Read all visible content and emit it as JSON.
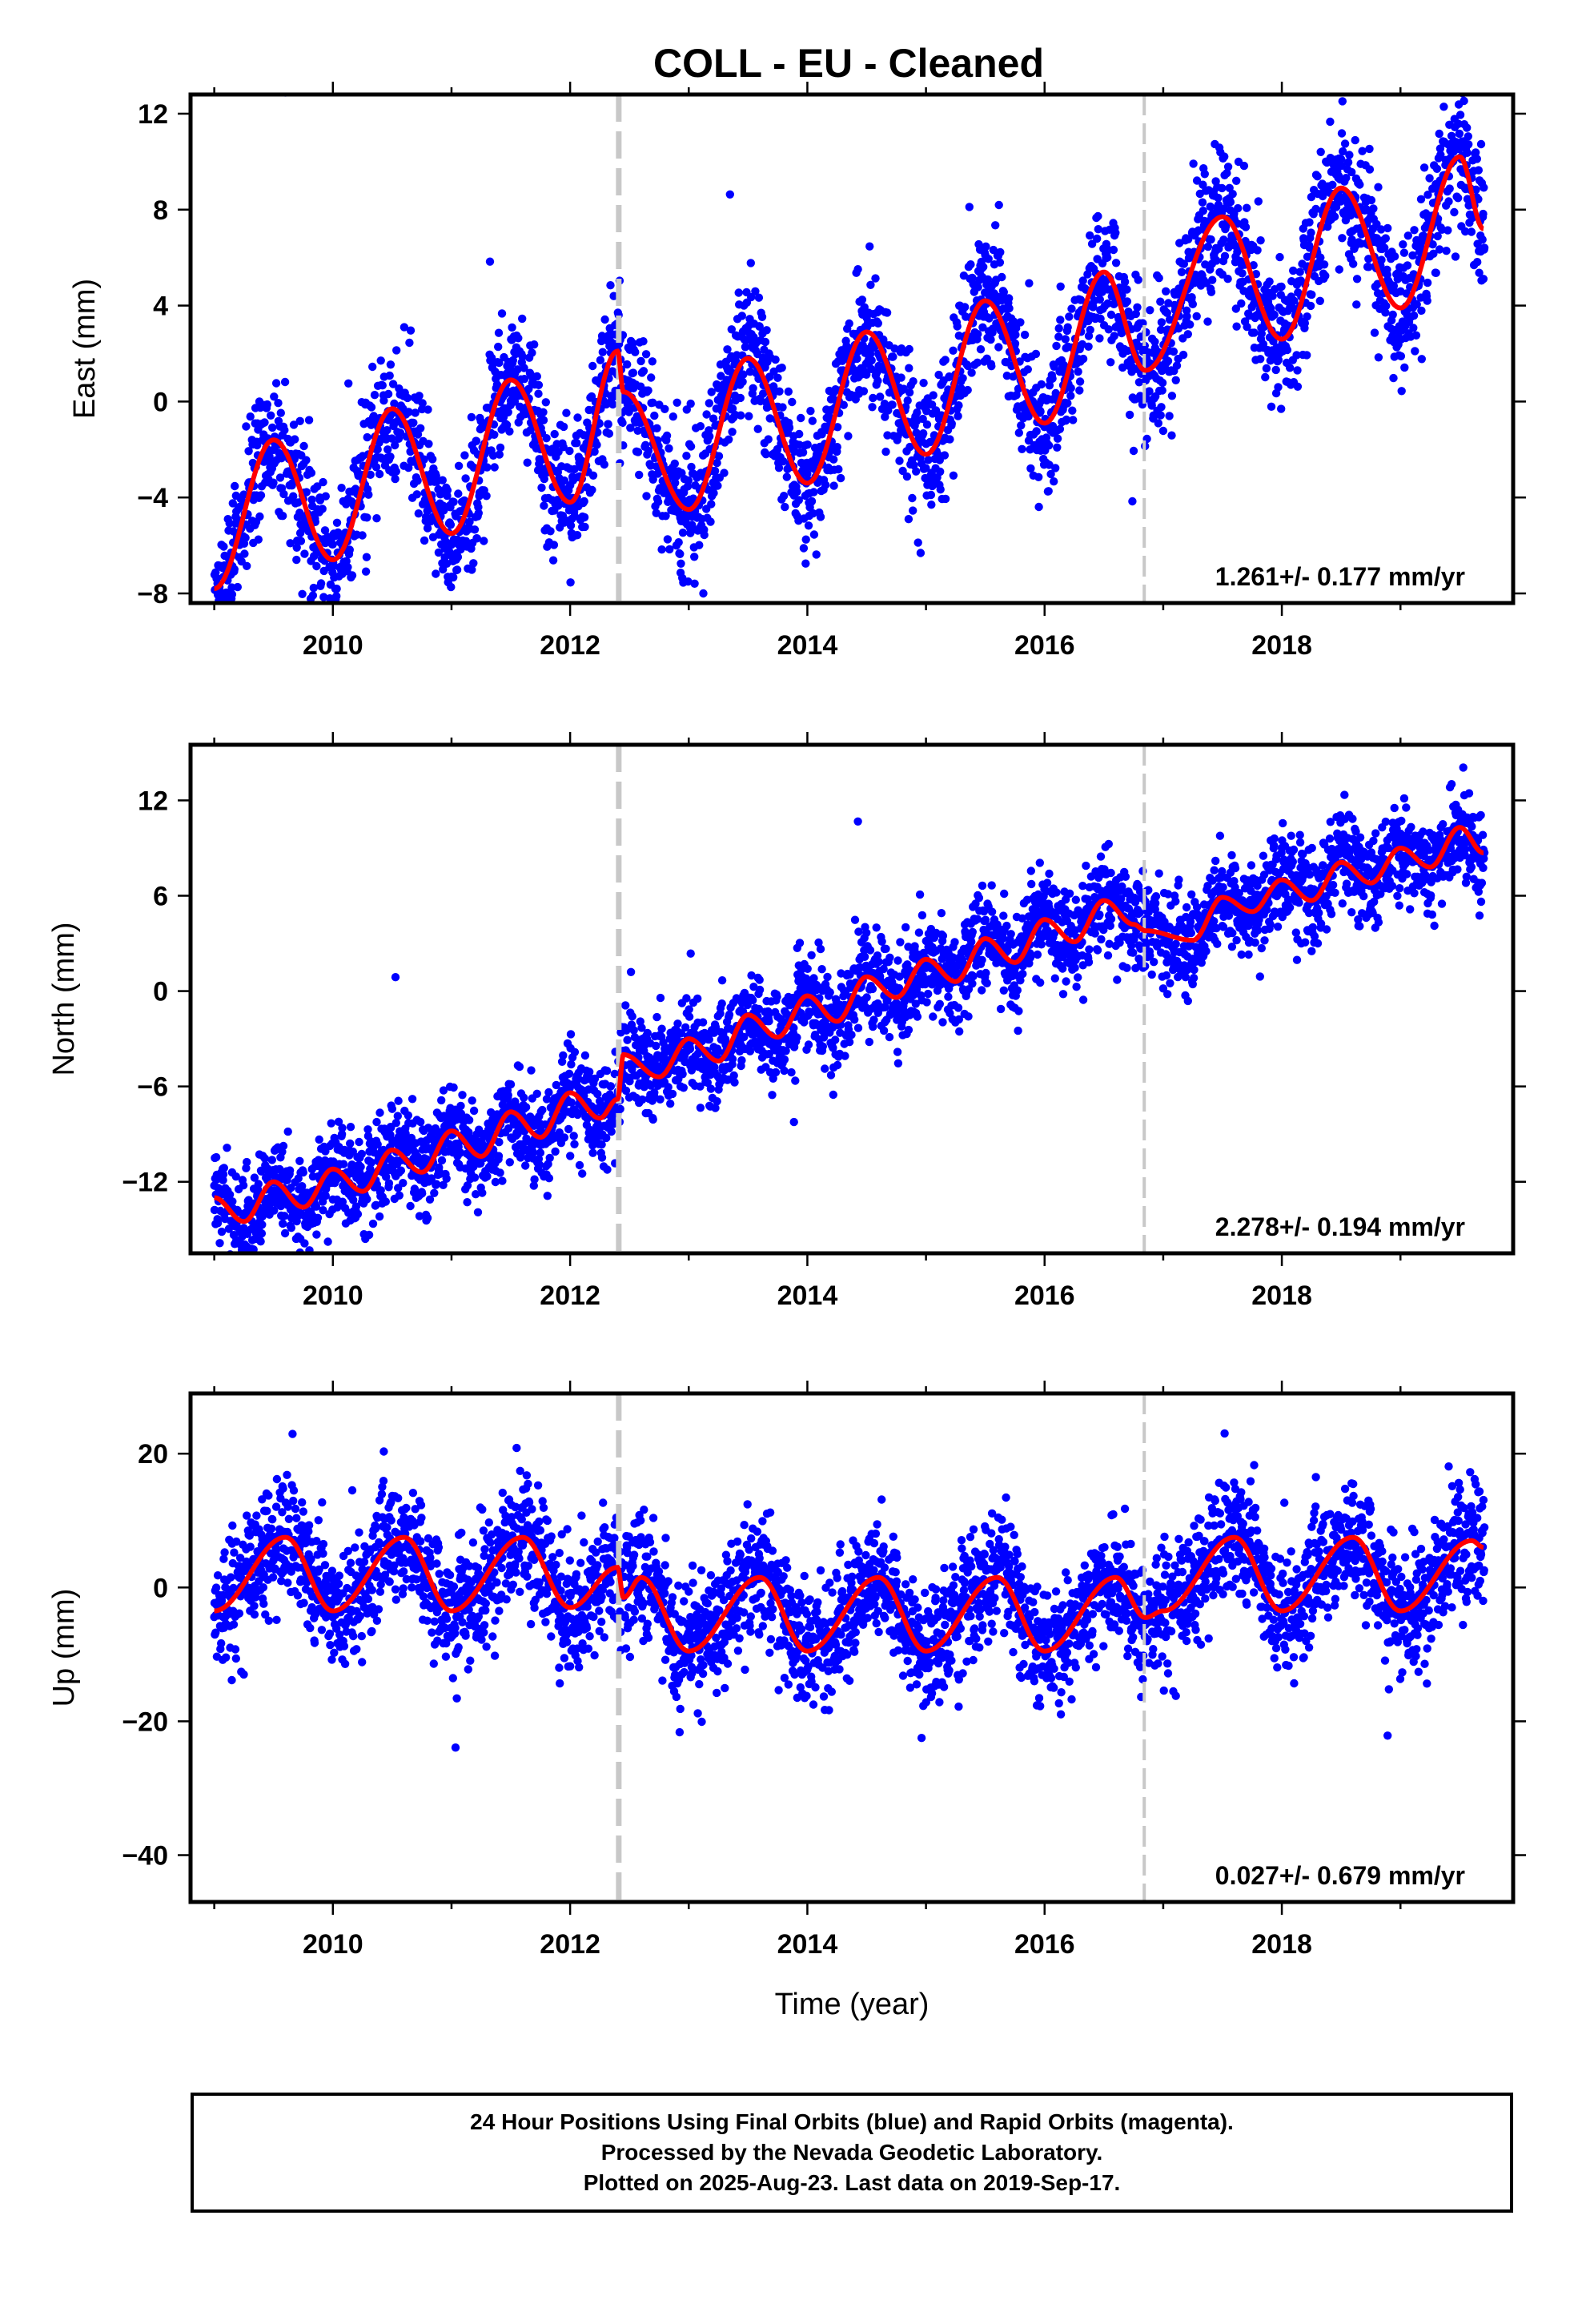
{
  "title": "COLL  - EU - Cleaned",
  "colors": {
    "final_orbits": "#0000ff",
    "rapid_orbits": "#ff00ff",
    "model": "#ff0000",
    "marker_line": "#c8c8c8",
    "frame": "#000000"
  },
  "footer": {
    "lines": [
      "24 Hour Positions Using Final Orbits (blue) and Rapid Orbits (magenta).",
      "Processed by the Nevada Geodetic Laboratory.",
      "Plotted on 2025-Aug-23. Last data on 2019-Sep-17."
    ]
  },
  "chart_data": [
    {
      "type": "scatter",
      "panel": "east",
      "title": "COLL  - EU - Cleaned",
      "xlabel": "",
      "ylabel": "East (mm)",
      "xlim": [
        2008.8,
        2019.95
      ],
      "ylim": [
        -8.4,
        12.8
      ],
      "xticks": [
        2010,
        2012,
        2014,
        2016,
        2018
      ],
      "yticks": [
        -8,
        -4,
        0,
        4,
        8,
        12
      ],
      "grid": false,
      "rate_label": "1.261+/- 0.177 mm/yr",
      "event_lines": [
        2012.41,
        2016.84
      ],
      "model": {
        "x": [
          2009.0,
          2009.5,
          2010.0,
          2010.5,
          2011.0,
          2011.5,
          2012.0,
          2012.4,
          2012.45,
          2013.0,
          2013.5,
          2014.0,
          2014.5,
          2015.0,
          2015.5,
          2016.0,
          2016.5,
          2016.85,
          2017.5,
          2018.0,
          2018.5,
          2019.0,
          2019.5,
          2019.7
        ],
        "y": [
          -7.8,
          -1.6,
          -6.6,
          -0.3,
          -5.5,
          0.9,
          -4.2,
          2.1,
          0.4,
          -4.5,
          1.8,
          -3.4,
          2.9,
          -2.2,
          4.2,
          -0.9,
          5.4,
          1.3,
          7.7,
          2.6,
          8.9,
          3.9,
          10.2,
          7.2
        ]
      }
    },
    {
      "type": "scatter",
      "panel": "north",
      "xlabel": "",
      "ylabel": "North (mm)",
      "xlim": [
        2008.8,
        2019.95
      ],
      "ylim": [
        -16.5,
        15.5
      ],
      "xticks": [
        2010,
        2012,
        2014,
        2016,
        2018
      ],
      "yticks": [
        -12,
        -6,
        0,
        6,
        12
      ],
      "grid": false,
      "rate_label": "2.278+/- 0.194 mm/yr",
      "event_lines": [
        2012.41,
        2016.84
      ],
      "model": {
        "x": [
          2009.0,
          2009.25,
          2009.5,
          2009.75,
          2010.0,
          2010.25,
          2010.5,
          2010.75,
          2011.0,
          2011.25,
          2011.5,
          2011.75,
          2012.0,
          2012.25,
          2012.4,
          2012.45,
          2012.75,
          2013.0,
          2013.25,
          2013.5,
          2013.75,
          2014.0,
          2014.25,
          2014.5,
          2014.75,
          2015.0,
          2015.25,
          2015.5,
          2015.75,
          2016.0,
          2016.25,
          2016.5,
          2016.75,
          2016.85,
          2017.25,
          2017.5,
          2017.75,
          2018.0,
          2018.25,
          2018.5,
          2018.75,
          2019.0,
          2019.25,
          2019.5,
          2019.7
        ],
        "y": [
          -13.0,
          -14.5,
          -12.0,
          -13.6,
          -11.2,
          -12.6,
          -10.0,
          -11.4,
          -8.8,
          -10.4,
          -7.6,
          -9.2,
          -6.4,
          -8.0,
          -6.8,
          -4.0,
          -5.4,
          -3.0,
          -4.4,
          -1.5,
          -2.9,
          -0.3,
          -1.9,
          0.9,
          -0.4,
          2.0,
          0.6,
          3.3,
          1.8,
          4.5,
          3.1,
          5.7,
          4.2,
          3.8,
          3.2,
          5.9,
          5.0,
          7.0,
          5.7,
          8.1,
          6.8,
          9.0,
          7.8,
          10.3,
          8.7
        ]
      }
    },
    {
      "type": "scatter",
      "panel": "up",
      "xlabel": "Time (year)",
      "ylabel": "Up (mm)",
      "xlim": [
        2008.8,
        2019.95
      ],
      "ylim": [
        -47,
        29
      ],
      "xticks": [
        2010,
        2012,
        2014,
        2016,
        2018
      ],
      "yticks": [
        -40,
        -20,
        0,
        20
      ],
      "grid": false,
      "rate_label": "0.027+/- 0.679 mm/yr",
      "event_lines": [
        2012.41,
        2016.84
      ],
      "model": {
        "x": [
          2009.0,
          2009.6,
          2010.0,
          2010.6,
          2011.0,
          2011.6,
          2012.0,
          2012.4,
          2012.45,
          2012.6,
          2013.0,
          2013.6,
          2014.0,
          2014.6,
          2015.0,
          2015.6,
          2016.0,
          2016.6,
          2016.85,
          2017.0,
          2017.6,
          2018.0,
          2018.6,
          2019.0,
          2019.6,
          2019.7
        ],
        "y": [
          -3.5,
          7.5,
          -3.5,
          7.5,
          -3.5,
          7.5,
          -3.0,
          3.0,
          -1.5,
          1.5,
          -9.5,
          1.5,
          -9.5,
          1.5,
          -9.5,
          1.5,
          -9.5,
          1.5,
          -4.5,
          -3.5,
          7.5,
          -3.5,
          7.5,
          -3.5,
          7.0,
          6.0
        ]
      }
    }
  ]
}
